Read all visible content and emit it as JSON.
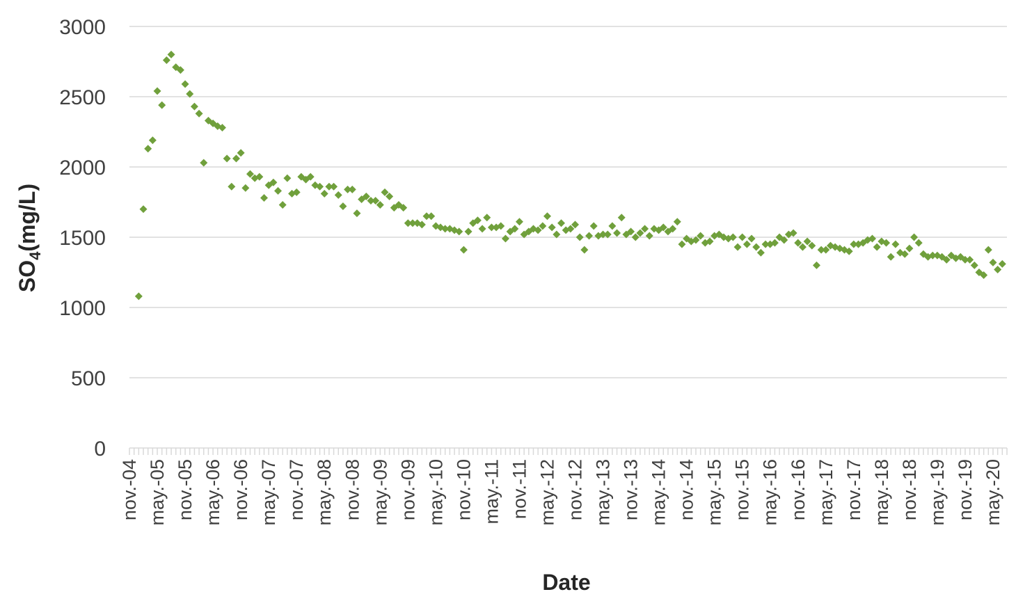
{
  "chart_data": {
    "type": "scatter",
    "xlabel": "Date",
    "ylabel": "SO",
    "ylabel_sub": "4",
    "ylabel_suffix": "(mg/L)",
    "ylim": [
      0,
      3000
    ],
    "yticks": [
      0,
      500,
      1000,
      1500,
      2000,
      2500,
      3000
    ],
    "x_tick_labels": [
      "nov.-04",
      "may.-05",
      "nov.-05",
      "may.-06",
      "nov.-06",
      "may.-07",
      "nov.-07",
      "may.-08",
      "nov.-08",
      "may.-09",
      "nov.-09",
      "may.-10",
      "nov.-10",
      "may.-11",
      "nov.-11",
      "may.-12",
      "nov.-12",
      "may.-13",
      "nov.-13",
      "may.-14",
      "nov.-14",
      "may.-15",
      "nov.-15",
      "may.-16",
      "nov.-16",
      "may.-17",
      "nov.-17",
      "may.-18",
      "nov.-18",
      "may.-19",
      "nov.-19",
      "may.-20"
    ],
    "xlim": [
      "2004-11",
      "2020-08"
    ],
    "grid": true,
    "marker_color": "#70a03c",
    "marker_shape": "diamond",
    "series": [
      {
        "points": [
          [
            "2005-01",
            1080
          ],
          [
            "2005-02",
            1700
          ],
          [
            "2005-03",
            2130
          ],
          [
            "2005-04",
            2190
          ],
          [
            "2005-05",
            2540
          ],
          [
            "2005-06",
            2440
          ],
          [
            "2005-07",
            2760
          ],
          [
            "2005-08",
            2800
          ],
          [
            "2005-09",
            2710
          ],
          [
            "2005-10",
            2690
          ],
          [
            "2005-11",
            2590
          ],
          [
            "2005-12",
            2520
          ],
          [
            "2006-01",
            2430
          ],
          [
            "2006-02",
            2380
          ],
          [
            "2006-03",
            2030
          ],
          [
            "2006-04",
            2330
          ],
          [
            "2006-05",
            2310
          ],
          [
            "2006-06",
            2290
          ],
          [
            "2006-07",
            2280
          ],
          [
            "2006-08",
            2060
          ],
          [
            "2006-09",
            1860
          ],
          [
            "2006-10",
            2060
          ],
          [
            "2006-11",
            2100
          ],
          [
            "2006-12",
            1850
          ],
          [
            "2007-01",
            1950
          ],
          [
            "2007-02",
            1920
          ],
          [
            "2007-03",
            1930
          ],
          [
            "2007-04",
            1780
          ],
          [
            "2007-05",
            1870
          ],
          [
            "2007-06",
            1890
          ],
          [
            "2007-07",
            1830
          ],
          [
            "2007-08",
            1730
          ],
          [
            "2007-09",
            1920
          ],
          [
            "2007-10",
            1810
          ],
          [
            "2007-11",
            1820
          ],
          [
            "2007-12",
            1930
          ],
          [
            "2008-01",
            1910
          ],
          [
            "2008-02",
            1930
          ],
          [
            "2008-03",
            1870
          ],
          [
            "2008-04",
            1860
          ],
          [
            "2008-05",
            1810
          ],
          [
            "2008-06",
            1860
          ],
          [
            "2008-07",
            1860
          ],
          [
            "2008-08",
            1800
          ],
          [
            "2008-09",
            1720
          ],
          [
            "2008-10",
            1840
          ],
          [
            "2008-11",
            1840
          ],
          [
            "2008-12",
            1670
          ],
          [
            "2009-01",
            1770
          ],
          [
            "2009-02",
            1790
          ],
          [
            "2009-03",
            1760
          ],
          [
            "2009-04",
            1760
          ],
          [
            "2009-05",
            1730
          ],
          [
            "2009-06",
            1820
          ],
          [
            "2009-07",
            1790
          ],
          [
            "2009-08",
            1710
          ],
          [
            "2009-09",
            1730
          ],
          [
            "2009-10",
            1710
          ],
          [
            "2009-11",
            1600
          ],
          [
            "2009-12",
            1600
          ],
          [
            "2010-01",
            1600
          ],
          [
            "2010-02",
            1590
          ],
          [
            "2010-03",
            1650
          ],
          [
            "2010-04",
            1650
          ],
          [
            "2010-05",
            1580
          ],
          [
            "2010-06",
            1570
          ],
          [
            "2010-07",
            1560
          ],
          [
            "2010-08",
            1560
          ],
          [
            "2010-09",
            1550
          ],
          [
            "2010-10",
            1540
          ],
          [
            "2010-11",
            1410
          ],
          [
            "2010-12",
            1540
          ],
          [
            "2011-01",
            1600
          ],
          [
            "2011-02",
            1620
          ],
          [
            "2011-03",
            1560
          ],
          [
            "2011-04",
            1640
          ],
          [
            "2011-05",
            1570
          ],
          [
            "2011-06",
            1570
          ],
          [
            "2011-07",
            1580
          ],
          [
            "2011-08",
            1490
          ],
          [
            "2011-09",
            1540
          ],
          [
            "2011-10",
            1560
          ],
          [
            "2011-11",
            1610
          ],
          [
            "2011-12",
            1520
          ],
          [
            "2012-01",
            1540
          ],
          [
            "2012-02",
            1560
          ],
          [
            "2012-03",
            1550
          ],
          [
            "2012-04",
            1580
          ],
          [
            "2012-05",
            1650
          ],
          [
            "2012-06",
            1570
          ],
          [
            "2012-07",
            1520
          ],
          [
            "2012-08",
            1600
          ],
          [
            "2012-09",
            1550
          ],
          [
            "2012-10",
            1560
          ],
          [
            "2012-11",
            1590
          ],
          [
            "2012-12",
            1500
          ],
          [
            "2013-01",
            1410
          ],
          [
            "2013-02",
            1510
          ],
          [
            "2013-03",
            1580
          ],
          [
            "2013-04",
            1510
          ],
          [
            "2013-05",
            1520
          ],
          [
            "2013-06",
            1520
          ],
          [
            "2013-07",
            1580
          ],
          [
            "2013-08",
            1530
          ],
          [
            "2013-09",
            1640
          ],
          [
            "2013-10",
            1520
          ],
          [
            "2013-11",
            1540
          ],
          [
            "2013-12",
            1500
          ],
          [
            "2014-01",
            1530
          ],
          [
            "2014-02",
            1560
          ],
          [
            "2014-03",
            1510
          ],
          [
            "2014-04",
            1560
          ],
          [
            "2014-05",
            1550
          ],
          [
            "2014-06",
            1570
          ],
          [
            "2014-07",
            1540
          ],
          [
            "2014-08",
            1560
          ],
          [
            "2014-09",
            1610
          ],
          [
            "2014-10",
            1450
          ],
          [
            "2014-11",
            1490
          ],
          [
            "2014-12",
            1470
          ],
          [
            "2015-01",
            1480
          ],
          [
            "2015-02",
            1510
          ],
          [
            "2015-03",
            1460
          ],
          [
            "2015-04",
            1470
          ],
          [
            "2015-05",
            1510
          ],
          [
            "2015-06",
            1520
          ],
          [
            "2015-07",
            1500
          ],
          [
            "2015-08",
            1490
          ],
          [
            "2015-09",
            1500
          ],
          [
            "2015-10",
            1430
          ],
          [
            "2015-11",
            1500
          ],
          [
            "2015-12",
            1450
          ],
          [
            "2016-01",
            1490
          ],
          [
            "2016-02",
            1430
          ],
          [
            "2016-03",
            1390
          ],
          [
            "2016-04",
            1450
          ],
          [
            "2016-05",
            1450
          ],
          [
            "2016-06",
            1460
          ],
          [
            "2016-07",
            1500
          ],
          [
            "2016-08",
            1480
          ],
          [
            "2016-09",
            1520
          ],
          [
            "2016-10",
            1530
          ],
          [
            "2016-11",
            1460
          ],
          [
            "2016-12",
            1430
          ],
          [
            "2017-01",
            1470
          ],
          [
            "2017-02",
            1440
          ],
          [
            "2017-03",
            1300
          ],
          [
            "2017-04",
            1410
          ],
          [
            "2017-05",
            1410
          ],
          [
            "2017-06",
            1440
          ],
          [
            "2017-07",
            1430
          ],
          [
            "2017-08",
            1420
          ],
          [
            "2017-09",
            1410
          ],
          [
            "2017-10",
            1400
          ],
          [
            "2017-11",
            1450
          ],
          [
            "2017-12",
            1450
          ],
          [
            "2018-01",
            1460
          ],
          [
            "2018-02",
            1480
          ],
          [
            "2018-03",
            1490
          ],
          [
            "2018-04",
            1430
          ],
          [
            "2018-05",
            1470
          ],
          [
            "2018-06",
            1460
          ],
          [
            "2018-07",
            1360
          ],
          [
            "2018-08",
            1450
          ],
          [
            "2018-09",
            1390
          ],
          [
            "2018-10",
            1380
          ],
          [
            "2018-11",
            1420
          ],
          [
            "2018-12",
            1500
          ],
          [
            "2019-01",
            1460
          ],
          [
            "2019-02",
            1380
          ],
          [
            "2019-03",
            1360
          ],
          [
            "2019-04",
            1370
          ],
          [
            "2019-05",
            1370
          ],
          [
            "2019-06",
            1360
          ],
          [
            "2019-07",
            1340
          ],
          [
            "2019-08",
            1370
          ],
          [
            "2019-09",
            1350
          ],
          [
            "2019-10",
            1360
          ],
          [
            "2019-11",
            1340
          ],
          [
            "2019-12",
            1340
          ],
          [
            "2020-01",
            1300
          ],
          [
            "2020-02",
            1250
          ],
          [
            "2020-03",
            1230
          ],
          [
            "2020-04",
            1410
          ],
          [
            "2020-05",
            1320
          ],
          [
            "2020-06",
            1270
          ],
          [
            "2020-07",
            1310
          ]
        ]
      }
    ]
  }
}
